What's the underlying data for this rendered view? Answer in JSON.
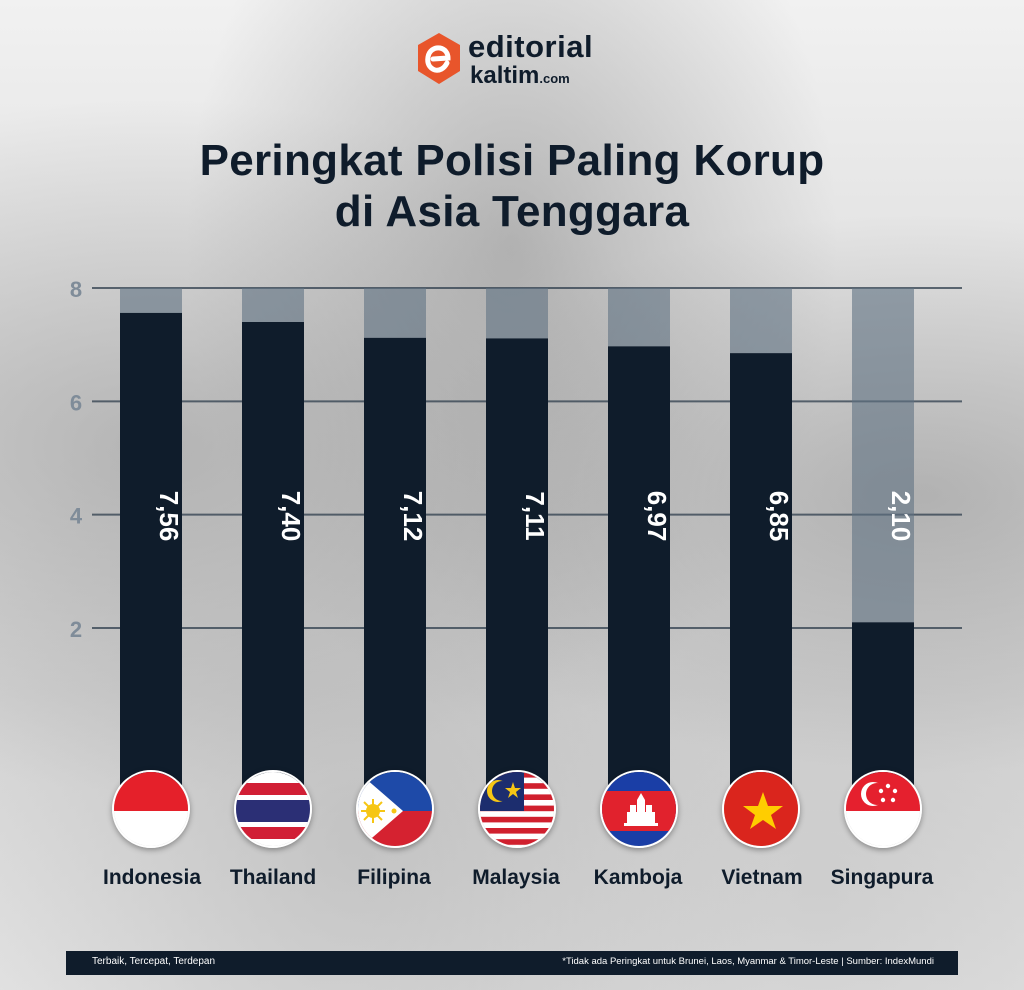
{
  "brand": {
    "line1": "editorial",
    "line2": "kaltim",
    "domain": ".com"
  },
  "title_line1": "Peringkat Polisi Paling Korup",
  "title_line2": "di Asia Tenggara",
  "colors": {
    "bar": "#0f1c2b",
    "bar_track": "#5f7182",
    "grid": "#2f3e4d",
    "accent": "#e8552b"
  },
  "chart_data": {
    "type": "bar",
    "title": "Peringkat Polisi Paling Korup di Asia Tenggara",
    "xlabel": "",
    "ylabel": "",
    "ylim": [
      0,
      8
    ],
    "yticks": [
      2,
      4,
      6,
      8
    ],
    "categories": [
      "Indonesia",
      "Thailand",
      "Filipina",
      "Malaysia",
      "Kamboja",
      "Vietnam",
      "Singapura"
    ],
    "values": [
      7.56,
      7.4,
      7.12,
      7.11,
      6.97,
      6.85,
      2.1
    ],
    "value_labels": [
      "7,56",
      "7,40",
      "7,12",
      "7,11",
      "6,97",
      "6,85",
      "2,10"
    ],
    "grid": true
  },
  "flags": [
    "indonesia-flag-icon",
    "thailand-flag-icon",
    "philippines-flag-icon",
    "malaysia-flag-icon",
    "cambodia-flag-icon",
    "vietnam-flag-icon",
    "singapore-flag-icon"
  ],
  "footer": {
    "left": "Terbaik, Tercepat, Terdepan",
    "right": "*Tidak ada Peringkat untuk Brunei, Laos, Myanmar & Timor-Leste | Sumber: IndexMundi"
  }
}
